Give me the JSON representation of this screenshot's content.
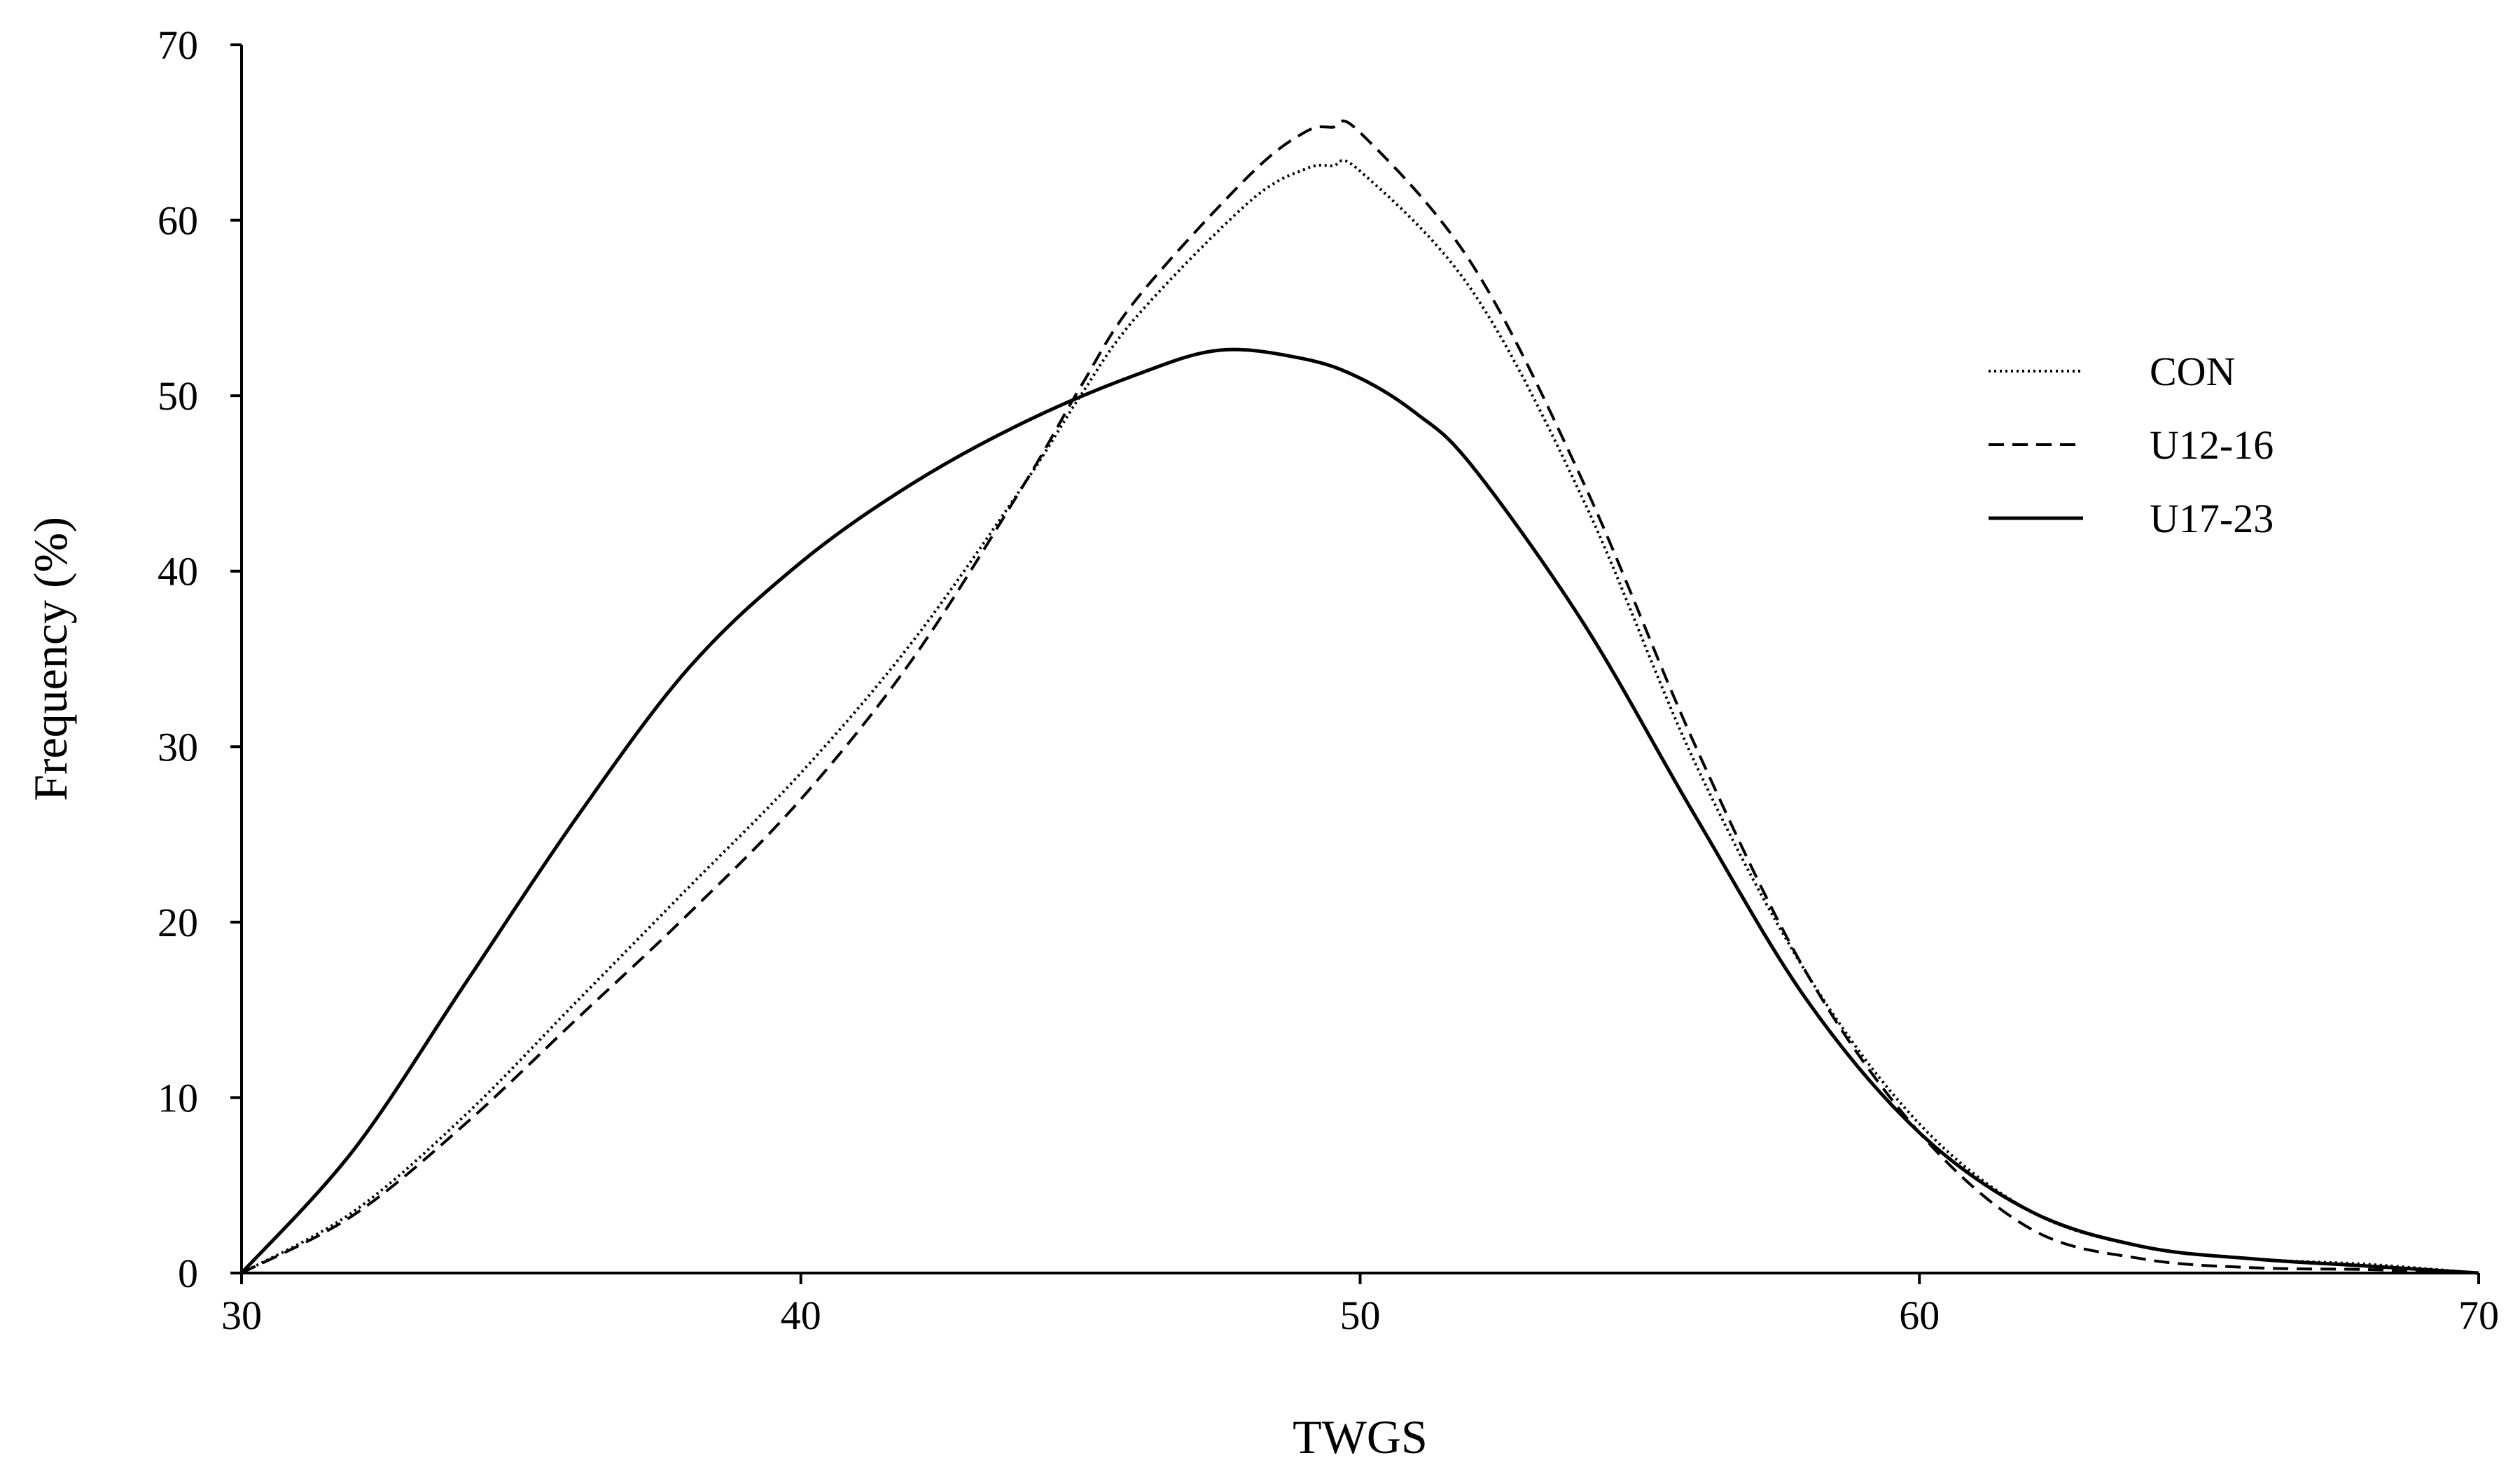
{
  "chart_data": {
    "type": "line",
    "title": "",
    "xlabel": "TWGS",
    "ylabel": "Frequency (%)",
    "xlim": [
      30,
      70
    ],
    "ylim": [
      0,
      70
    ],
    "xticks": [
      30,
      40,
      50,
      60,
      70
    ],
    "yticks": [
      0,
      10,
      20,
      30,
      40,
      50,
      60,
      70
    ],
    "grid": false,
    "legend_position": "right",
    "series": [
      {
        "name": "CON",
        "line_style": "dotted",
        "color": "#000000",
        "x": [
          30,
          32,
          34,
          36,
          38,
          40,
          42,
          44,
          45,
          46,
          48,
          49,
          49.5,
          50,
          52,
          54,
          56,
          58,
          60,
          62,
          64,
          66,
          68,
          70
        ],
        "y": [
          0,
          3.5,
          9,
          15.5,
          22,
          28.5,
          36,
          45,
          50,
          54.5,
          61,
          62.9,
          63.1,
          62.8,
          56,
          44,
          29,
          17,
          8.5,
          3.5,
          1.5,
          0.8,
          0.5,
          0
        ]
      },
      {
        "name": "U12-16",
        "line_style": "dashed",
        "color": "#000000",
        "x": [
          30,
          32,
          34,
          36,
          38,
          40,
          42,
          44,
          45,
          46,
          48,
          49,
          49.5,
          50,
          52,
          54,
          56,
          58,
          60,
          62,
          64,
          66,
          68,
          70
        ],
        "y": [
          0,
          3.3,
          8.5,
          14.5,
          20.5,
          27,
          35,
          45,
          50.5,
          55.5,
          62.5,
          65,
          65.3,
          65,
          57.5,
          45,
          30,
          17,
          8,
          2.5,
          0.8,
          0.3,
          0.2,
          0
        ]
      },
      {
        "name": "U17-23",
        "line_style": "solid",
        "color": "#000000",
        "x": [
          30,
          32,
          34,
          36,
          38,
          40,
          42,
          44,
          46,
          47.5,
          49,
          50,
          51,
          52,
          54,
          56,
          58,
          60,
          62,
          64,
          66,
          68,
          70
        ],
        "y": [
          0,
          7,
          16.5,
          26,
          34.5,
          40.5,
          45,
          48.5,
          51.2,
          52.6,
          52.1,
          51,
          49,
          46,
          37,
          26,
          15.5,
          8,
          3.5,
          1.5,
          0.8,
          0.4,
          0
        ]
      }
    ]
  }
}
